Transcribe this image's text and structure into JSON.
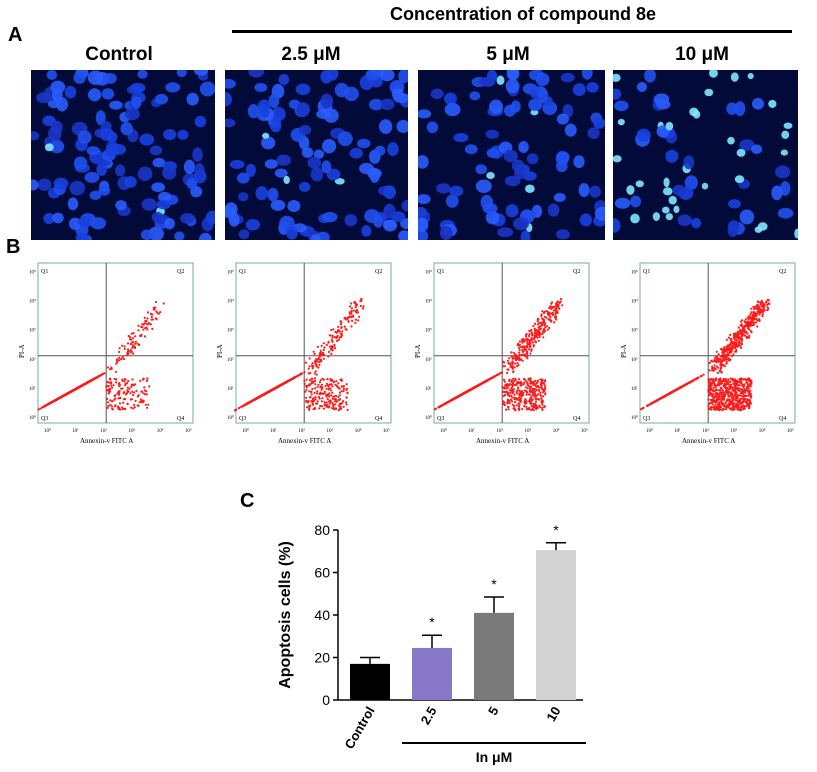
{
  "panel_labels": {
    "a": "A",
    "b": "B",
    "c": "C"
  },
  "header": {
    "concentration_title": "Concentration of compound 8e"
  },
  "micro_columns": [
    {
      "label": "Control",
      "cells": 120,
      "bright": 0.05
    },
    {
      "label": "2.5 μM",
      "cells": 110,
      "bright": 0.04
    },
    {
      "label": "5 μM",
      "cells": 95,
      "bright": 0.08
    },
    {
      "label": "10 μM",
      "cells": 70,
      "bright": 0.35
    }
  ],
  "flow_plots": {
    "quadrants": [
      "Q1",
      "Q2",
      "Q3",
      "Q4"
    ],
    "xlabel": "Annexin-v FITC A",
    "ylabel": "PI-A",
    "tick_labels": [
      "10⁰",
      "10¹",
      "10²",
      "10³",
      "10⁴",
      "10⁵"
    ],
    "apoptosis_fraction": [
      0.17,
      0.25,
      0.41,
      0.71
    ]
  },
  "chart_data": {
    "type": "bar",
    "categories": [
      "Control",
      "2.5",
      "5",
      "10"
    ],
    "values": [
      17,
      24.5,
      41,
      70.5
    ],
    "errors": [
      3,
      6,
      7.5,
      3.5
    ],
    "significance": [
      "",
      "*",
      "*",
      "*"
    ],
    "colors": [
      "#000000",
      "#8878c8",
      "#7a7a7a",
      "#d2d2d2"
    ],
    "ylabel": "Apoptosis cells (%)",
    "group_label": "In μM",
    "ylim": [
      0,
      80
    ],
    "yticks": [
      0,
      20,
      40,
      60,
      80
    ]
  }
}
